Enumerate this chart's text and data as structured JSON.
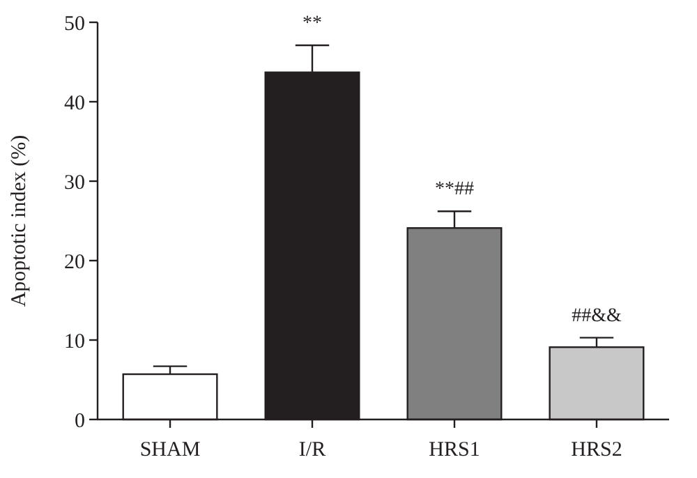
{
  "chart_data": {
    "type": "bar",
    "ylabel": "Apoptotic index (%)",
    "categories": [
      "SHAM",
      "I/R",
      "HRS1",
      "HRS2"
    ],
    "values": [
      5.7,
      43.7,
      24.1,
      9.1
    ],
    "errors": [
      1.0,
      3.4,
      2.1,
      1.2
    ],
    "colors": [
      "#ffffff",
      "#231f20",
      "#808080",
      "#c8c8c8"
    ],
    "ylim": [
      0,
      50
    ],
    "yticks": [
      0,
      10,
      20,
      30,
      40,
      50
    ],
    "grid": false,
    "annotations": [
      "**",
      "**##",
      "##&&"
    ]
  }
}
